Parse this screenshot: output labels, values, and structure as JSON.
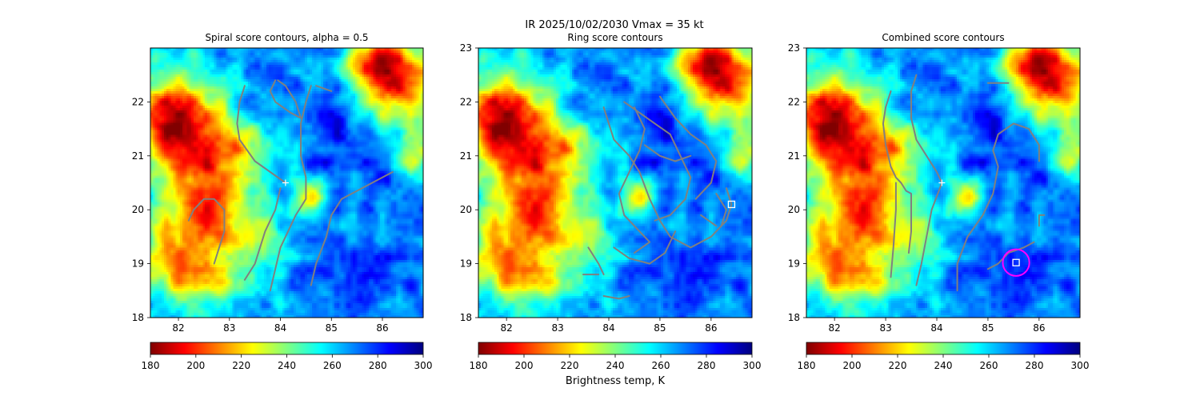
{
  "suptitle": {
    "line1": "IR  2025/10/02/2030    Vmax = 35 kt"
  },
  "colormap": [
    "#800000",
    "#ff0000",
    "#ff8000",
    "#ffff00",
    "#80ff80",
    "#00ffff",
    "#0080ff",
    "#0000ff",
    "#000080"
  ],
  "contour_color": "#808080",
  "chart_data": [
    {
      "type": "heatmap",
      "title": "Spiral score contours, alpha =  0.5",
      "xlim": [
        81.45,
        86.8
      ],
      "ylim": [
        18.0,
        23.0
      ],
      "xticks": [
        82,
        83,
        84,
        85,
        86
      ],
      "yticks": [
        18,
        19,
        20,
        21,
        22
      ],
      "center_marker": {
        "symbol": "plus",
        "x": 84.1,
        "y": 20.5
      },
      "contours": [
        [
          [
            83.3,
            22.3
          ],
          [
            83.2,
            22.0
          ],
          [
            83.15,
            21.6
          ],
          [
            83.2,
            21.3
          ],
          [
            83.5,
            20.9
          ],
          [
            83.8,
            20.7
          ],
          [
            84.1,
            20.5
          ]
        ],
        [
          [
            83.9,
            22.4
          ],
          [
            83.8,
            22.2
          ],
          [
            83.9,
            22.0
          ],
          [
            84.2,
            21.8
          ],
          [
            84.4,
            21.7
          ],
          [
            84.3,
            22.0
          ],
          [
            84.1,
            22.3
          ],
          [
            83.95,
            22.4
          ]
        ],
        [
          [
            84.6,
            22.3
          ],
          [
            84.5,
            22.0
          ],
          [
            84.4,
            21.6
          ],
          [
            84.4,
            21.0
          ],
          [
            84.5,
            20.6
          ],
          [
            84.5,
            20.2
          ],
          [
            84.3,
            19.9
          ],
          [
            84.0,
            19.3
          ],
          [
            83.8,
            18.5
          ]
        ],
        [
          [
            84.7,
            22.3
          ],
          [
            85.0,
            22.2
          ]
        ],
        [
          [
            82.2,
            19.8
          ],
          [
            82.3,
            20.0
          ],
          [
            82.5,
            20.2
          ],
          [
            82.7,
            20.2
          ],
          [
            82.9,
            20.0
          ],
          [
            82.9,
            19.6
          ],
          [
            82.8,
            19.3
          ],
          [
            82.7,
            19.0
          ]
        ],
        [
          [
            83.3,
            18.7
          ],
          [
            83.5,
            19.0
          ],
          [
            83.7,
            19.6
          ],
          [
            83.9,
            20.0
          ],
          [
            84.0,
            20.4
          ]
        ],
        [
          [
            84.6,
            18.6
          ],
          [
            84.7,
            19.0
          ],
          [
            84.9,
            19.5
          ],
          [
            85.0,
            19.9
          ],
          [
            85.2,
            20.2
          ],
          [
            85.6,
            20.4
          ],
          [
            86.0,
            20.6
          ],
          [
            86.2,
            20.7
          ]
        ]
      ],
      "boxes": [],
      "circles": []
    },
    {
      "type": "heatmap",
      "title": "Ring score contours",
      "xlim": [
        81.45,
        86.8
      ],
      "ylim": [
        18.0,
        23.0
      ],
      "xticks": [
        82,
        83,
        84,
        85,
        86
      ],
      "yticks": [
        18,
        19,
        20,
        21,
        22,
        23
      ],
      "center_marker": null,
      "contours": [
        [
          [
            83.9,
            21.9
          ],
          [
            84.0,
            21.6
          ],
          [
            84.1,
            21.3
          ],
          [
            84.4,
            21.0
          ],
          [
            84.6,
            20.7
          ],
          [
            84.8,
            20.2
          ],
          [
            85.0,
            19.8
          ],
          [
            85.2,
            19.5
          ],
          [
            85.6,
            19.3
          ],
          [
            86.0,
            19.5
          ],
          [
            86.3,
            19.8
          ],
          [
            86.4,
            20.1
          ],
          [
            86.3,
            20.4
          ]
        ],
        [
          [
            84.3,
            22.0
          ],
          [
            84.6,
            21.8
          ],
          [
            84.9,
            21.6
          ],
          [
            85.2,
            21.4
          ],
          [
            85.4,
            21.0
          ],
          [
            85.6,
            20.6
          ],
          [
            85.5,
            20.2
          ],
          [
            85.2,
            19.9
          ],
          [
            84.9,
            19.8
          ]
        ],
        [
          [
            84.5,
            21.9
          ],
          [
            84.7,
            21.5
          ],
          [
            84.6,
            21.1
          ],
          [
            84.4,
            20.7
          ],
          [
            84.2,
            20.3
          ],
          [
            84.3,
            19.9
          ],
          [
            84.6,
            19.6
          ],
          [
            84.8,
            19.4
          ],
          [
            84.5,
            19.2
          ]
        ],
        [
          [
            85.0,
            22.1
          ],
          [
            85.3,
            21.7
          ],
          [
            85.6,
            21.4
          ],
          [
            85.9,
            21.2
          ],
          [
            86.1,
            20.9
          ],
          [
            86.0,
            20.5
          ],
          [
            85.7,
            20.2
          ]
        ],
        [
          [
            84.1,
            19.3
          ],
          [
            84.4,
            19.1
          ],
          [
            84.8,
            19.0
          ],
          [
            85.1,
            19.2
          ],
          [
            85.3,
            19.6
          ]
        ],
        [
          [
            83.6,
            19.3
          ],
          [
            83.8,
            19.0
          ],
          [
            83.9,
            18.8
          ]
        ],
        [
          [
            83.5,
            18.8
          ],
          [
            83.8,
            18.8
          ]
        ],
        [
          [
            83.9,
            18.4
          ],
          [
            84.2,
            18.35
          ],
          [
            84.4,
            18.4
          ]
        ],
        [
          [
            84.7,
            21.2
          ],
          [
            85.0,
            21.0
          ],
          [
            85.3,
            20.9
          ],
          [
            85.6,
            21.0
          ]
        ],
        [
          [
            86.1,
            20.3
          ],
          [
            86.3,
            20.0
          ],
          [
            86.2,
            19.7
          ]
        ],
        [
          [
            85.8,
            19.9
          ],
          [
            86.1,
            19.7
          ]
        ]
      ],
      "boxes": [
        {
          "x": 86.4,
          "y": 20.1
        }
      ],
      "circles": []
    },
    {
      "type": "heatmap",
      "title": "Combined score contours",
      "xlim": [
        81.45,
        86.8
      ],
      "ylim": [
        18.0,
        23.0
      ],
      "xticks": [
        82,
        83,
        84,
        85,
        86
      ],
      "yticks": [
        18,
        19,
        20,
        21,
        22,
        23
      ],
      "center_marker": {
        "symbol": "plus",
        "x": 84.1,
        "y": 20.5
      },
      "contours": [
        [
          [
            83.1,
            22.2
          ],
          [
            83.0,
            21.9
          ],
          [
            82.95,
            21.6
          ],
          [
            83.0,
            21.2
          ],
          [
            83.1,
            20.8
          ],
          [
            83.2,
            20.6
          ],
          [
            83.3,
            20.5
          ],
          [
            83.4,
            20.35
          ],
          [
            83.5,
            20.3
          ],
          [
            83.5,
            20.1
          ],
          [
            83.5,
            19.6
          ],
          [
            83.45,
            19.2
          ]
        ],
        [
          [
            83.2,
            20.5
          ],
          [
            83.2,
            20.0
          ],
          [
            83.15,
            19.3
          ],
          [
            83.1,
            18.75
          ]
        ],
        [
          [
            83.6,
            22.5
          ],
          [
            83.5,
            22.2
          ],
          [
            83.5,
            21.7
          ],
          [
            83.6,
            21.3
          ],
          [
            83.8,
            21.0
          ],
          [
            84.0,
            20.7
          ],
          [
            84.1,
            20.5
          ]
        ],
        [
          [
            83.6,
            18.6
          ],
          [
            83.7,
            19.0
          ],
          [
            83.8,
            19.5
          ],
          [
            83.9,
            20.0
          ],
          [
            84.1,
            20.5
          ]
        ],
        [
          [
            85.0,
            22.35
          ],
          [
            85.2,
            22.35
          ],
          [
            85.4,
            22.35
          ]
        ],
        [
          [
            84.4,
            18.5
          ],
          [
            84.4,
            19.0
          ],
          [
            84.6,
            19.5
          ],
          [
            84.9,
            19.9
          ],
          [
            85.1,
            20.3
          ],
          [
            85.2,
            20.8
          ],
          [
            85.1,
            21.1
          ],
          [
            85.2,
            21.4
          ],
          [
            85.5,
            21.6
          ],
          [
            85.8,
            21.5
          ],
          [
            86.0,
            21.2
          ],
          [
            86.0,
            20.9
          ]
        ],
        [
          [
            85.0,
            18.9
          ],
          [
            85.2,
            19.0
          ],
          [
            85.4,
            19.2
          ],
          [
            85.7,
            19.3
          ],
          [
            85.9,
            19.4
          ]
        ],
        [
          [
            86.0,
            19.7
          ],
          [
            86.0,
            19.9
          ],
          [
            86.1,
            19.9
          ]
        ]
      ],
      "boxes": [
        {
          "x": 85.55,
          "y": 19.02
        }
      ],
      "circles": [
        {
          "x": 85.55,
          "y": 19.02,
          "r_deg": 0.26,
          "color": "#ff00ff"
        }
      ]
    }
  ],
  "colorbars": [
    {
      "min": 180,
      "max": 300,
      "ticks": [
        180,
        200,
        220,
        240,
        260,
        280,
        300
      ],
      "label": ""
    },
    {
      "min": 180,
      "max": 300,
      "ticks": [
        180,
        200,
        220,
        240,
        260,
        280,
        300
      ],
      "label": "Brightness temp, K"
    },
    {
      "min": 180,
      "max": 300,
      "ticks": [
        180,
        200,
        220,
        240,
        260,
        280,
        300
      ],
      "label": ""
    }
  ]
}
